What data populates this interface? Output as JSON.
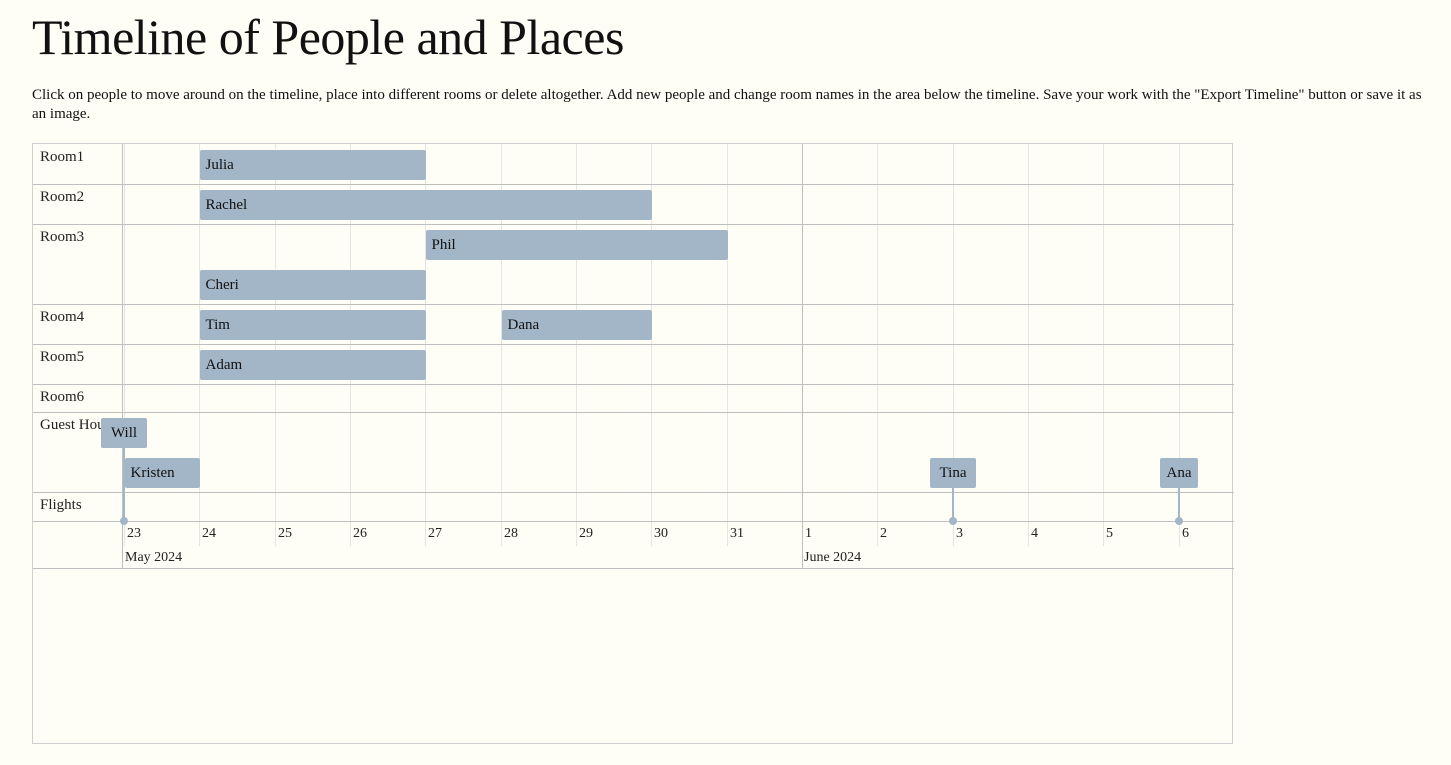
{
  "title": "Timeline of People and Places",
  "instructions": "Click on people to move around on the timeline, place into different rooms or delete altogether. Add new people and change room names in the area below the timeline. Save your work with the \"Export Timeline\" button or save it as an image.",
  "timeline": {
    "colors": {
      "item": "#a3b6c8",
      "background": "#fefdf6",
      "grid_minor": "#e5e5e5",
      "grid_major": "#bfbfbf"
    },
    "rooms": [
      {
        "id": "room1",
        "label": "Room1"
      },
      {
        "id": "room2",
        "label": "Room2"
      },
      {
        "id": "room3",
        "label": "Room3"
      },
      {
        "id": "room4",
        "label": "Room4"
      },
      {
        "id": "room5",
        "label": "Room5"
      },
      {
        "id": "room6",
        "label": "Room6"
      },
      {
        "id": "guesthouse",
        "label": "Guest House"
      },
      {
        "id": "flights",
        "label": "Flights"
      }
    ],
    "axis": {
      "start": "2024-05-22",
      "end": "2024-06-06",
      "day_ticks": [
        "23",
        "24",
        "25",
        "26",
        "27",
        "28",
        "29",
        "30",
        "31",
        "1",
        "2",
        "3",
        "4",
        "5",
        "6"
      ],
      "months": [
        {
          "label": "May 2024",
          "start": "2024-05-22"
        },
        {
          "label": "June 2024",
          "start": "2024-06-01"
        }
      ]
    },
    "people": [
      {
        "name": "Julia",
        "room": "room1",
        "start": "2024-05-24",
        "end": "2024-05-27"
      },
      {
        "name": "Rachel",
        "room": "room2",
        "start": "2024-05-24",
        "end": "2024-05-30"
      },
      {
        "name": "Phil",
        "room": "room3",
        "start": "2024-05-27",
        "end": "2024-05-31"
      },
      {
        "name": "Cheri",
        "room": "room3",
        "start": "2024-05-24",
        "end": "2024-05-27"
      },
      {
        "name": "Tim",
        "room": "room4",
        "start": "2024-05-24",
        "end": "2024-05-27"
      },
      {
        "name": "Dana",
        "room": "room4",
        "start": "2024-05-28",
        "end": "2024-05-30"
      },
      {
        "name": "Adam",
        "room": "room5",
        "start": "2024-05-24",
        "end": "2024-05-27"
      },
      {
        "name": "Will",
        "room": "guesthouse",
        "date": "2024-05-23",
        "kind": "point"
      },
      {
        "name": "Kristen",
        "room": "guesthouse",
        "start": "2024-05-23",
        "end": "2024-05-24"
      },
      {
        "name": "Tina",
        "room": "guesthouse",
        "date": "2024-06-03",
        "kind": "point"
      },
      {
        "name": "Ana",
        "room": "guesthouse",
        "date": "2024-06-06",
        "kind": "point"
      }
    ]
  }
}
